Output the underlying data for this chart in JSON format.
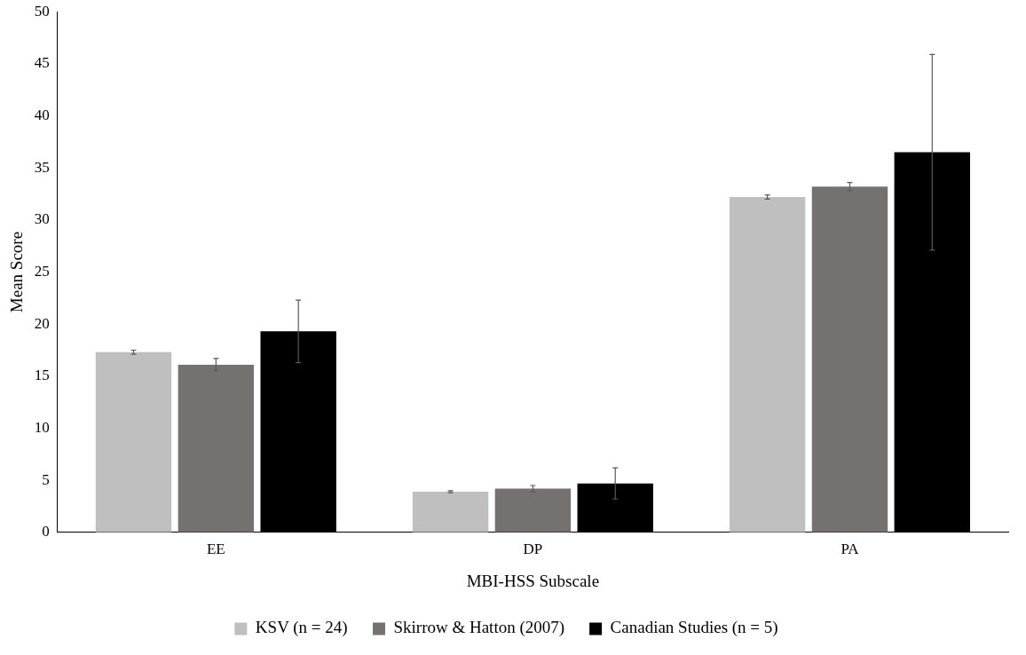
{
  "chart_data": {
    "type": "bar",
    "xlabel": "MBI-HSS Subscale",
    "ylabel": "Mean Score",
    "categories": [
      "EE",
      "DP",
      "PA"
    ],
    "series": [
      {
        "name": "KSV (n = 24)",
        "color": "#bfbfbf",
        "values": [
          17.3,
          3.9,
          32.2
        ],
        "errors": [
          0.2,
          0.1,
          0.2
        ]
      },
      {
        "name": "Skirrow & Hatton (2007)",
        "color": "#767171",
        "values": [
          16.1,
          4.2,
          33.2
        ],
        "errors": [
          0.6,
          0.3,
          0.4
        ]
      },
      {
        "name": "Canadian Studies (n = 5)",
        "color": "#000000",
        "values": [
          19.3,
          4.7,
          36.5
        ],
        "errors": [
          3,
          1.5,
          9.4
        ]
      }
    ],
    "ylim": [
      0,
      50
    ],
    "yticks": [
      0,
      5,
      10,
      15,
      20,
      25,
      30,
      35,
      40,
      45,
      50
    ],
    "grid": false,
    "legend": "bottom"
  }
}
